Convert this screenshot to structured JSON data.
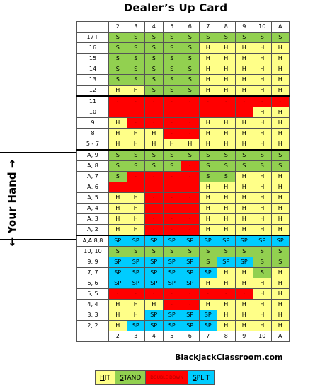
{
  "title": "Dealer’s Up Card",
  "side_label": "← Your Hand →",
  "brand": "BlackjackClassroom.com",
  "dealer_cards": [
    "2",
    "3",
    "4",
    "5",
    "6",
    "7",
    "8",
    "9",
    "10",
    "A"
  ],
  "codes": {
    "H": {
      "text": "H",
      "legend": "HIT",
      "first": "H",
      "rest": "IT",
      "color": "#ffff88"
    },
    "S": {
      "text": "S",
      "legend": "STAND",
      "first": "S",
      "rest": "TAND",
      "color": "#92d050"
    },
    "D": {
      "text": "-",
      "legend": "DOUBLE DOWN",
      "first": "D",
      "rest": "OUBLE DOWN",
      "color": "#ff0000"
    },
    "SP": {
      "text": "SP",
      "legend": "SPLIT",
      "first": "S",
      "rest": "PLIT",
      "color": "#00ccff"
    }
  },
  "rows": [
    {
      "hand": "17+",
      "cells": [
        "S",
        "S",
        "S",
        "S",
        "S",
        "S",
        "S",
        "S",
        "S",
        "S"
      ]
    },
    {
      "hand": "16",
      "cells": [
        "S",
        "S",
        "S",
        "S",
        "S",
        "H",
        "H",
        "H",
        "H",
        "H"
      ]
    },
    {
      "hand": "15",
      "cells": [
        "S",
        "S",
        "S",
        "S",
        "S",
        "H",
        "H",
        "H",
        "H",
        "H"
      ]
    },
    {
      "hand": "14",
      "cells": [
        "S",
        "S",
        "S",
        "S",
        "S",
        "H",
        "H",
        "H",
        "H",
        "H"
      ]
    },
    {
      "hand": "13",
      "cells": [
        "S",
        "S",
        "S",
        "S",
        "S",
        "H",
        "H",
        "H",
        "H",
        "H"
      ]
    },
    {
      "hand": "12",
      "cells": [
        "H",
        "H",
        "S",
        "S",
        "S",
        "H",
        "H",
        "H",
        "H",
        "H"
      ]
    },
    {
      "hand": "11",
      "cells": [
        "D",
        "D",
        "D",
        "D",
        "D",
        "D",
        "D",
        "D",
        "D",
        "D"
      ]
    },
    {
      "hand": "10",
      "cells": [
        "D",
        "D",
        "D",
        "D",
        "D",
        "D",
        "D",
        "D",
        "H",
        "H"
      ]
    },
    {
      "hand": "9",
      "cells": [
        "H",
        "D",
        "D",
        "D",
        "D",
        "H",
        "H",
        "H",
        "H",
        "H"
      ]
    },
    {
      "hand": "8",
      "cells": [
        "H",
        "H",
        "H",
        "D",
        "D",
        "H",
        "H",
        "H",
        "H",
        "H"
      ]
    },
    {
      "hand": "5 - 7",
      "cells": [
        "H",
        "H",
        "H",
        "H",
        "H",
        "H",
        "H",
        "H",
        "H",
        "H"
      ]
    },
    {
      "hand": "A, 9",
      "cells": [
        "S",
        "S",
        "S",
        "S",
        "S",
        "S",
        "S",
        "S",
        "S",
        "S"
      ]
    },
    {
      "hand": "A, 8",
      "cells": [
        "S",
        "S",
        "S",
        "S",
        "D",
        "S",
        "S",
        "S",
        "S",
        "S"
      ]
    },
    {
      "hand": "A, 7",
      "cells": [
        "S",
        "D",
        "D",
        "D",
        "D",
        "S",
        "S",
        "H",
        "H",
        "H"
      ]
    },
    {
      "hand": "A, 6",
      "cells": [
        "D",
        "D",
        "D",
        "D",
        "D",
        "H",
        "H",
        "H",
        "H",
        "H"
      ]
    },
    {
      "hand": "A, 5",
      "cells": [
        "H",
        "H",
        "D",
        "D",
        "D",
        "H",
        "H",
        "H",
        "H",
        "H"
      ]
    },
    {
      "hand": "A, 4",
      "cells": [
        "H",
        "H",
        "D",
        "D",
        "D",
        "H",
        "H",
        "H",
        "H",
        "H"
      ]
    },
    {
      "hand": "A, 3",
      "cells": [
        "H",
        "H",
        "D",
        "D",
        "D",
        "H",
        "H",
        "H",
        "H",
        "H"
      ]
    },
    {
      "hand": "A, 2",
      "cells": [
        "H",
        "H",
        "D",
        "D",
        "D",
        "H",
        "H",
        "H",
        "H",
        "H"
      ]
    },
    {
      "hand": "A,A 8,8",
      "cells": [
        "SP",
        "SP",
        "SP",
        "SP",
        "SP",
        "SP",
        "SP",
        "SP",
        "SP",
        "SP"
      ]
    },
    {
      "hand": "10, 10",
      "cells": [
        "S",
        "S",
        "S",
        "S",
        "S",
        "S",
        "S",
        "S",
        "S",
        "S"
      ]
    },
    {
      "hand": "9, 9",
      "cells": [
        "SP",
        "SP",
        "SP",
        "SP",
        "SP",
        "S",
        "SP",
        "SP",
        "S",
        "S"
      ]
    },
    {
      "hand": "7, 7",
      "cells": [
        "SP",
        "SP",
        "SP",
        "SP",
        "SP",
        "SP",
        "H",
        "H",
        "S",
        "H"
      ]
    },
    {
      "hand": "6, 6",
      "cells": [
        "SP",
        "SP",
        "SP",
        "SP",
        "SP",
        "H",
        "H",
        "H",
        "H",
        "H"
      ]
    },
    {
      "hand": "5, 5",
      "cells": [
        "D",
        "D",
        "D",
        "D",
        "D",
        "D",
        "D",
        "D",
        "H",
        "H"
      ]
    },
    {
      "hand": "4, 4",
      "cells": [
        "H",
        "H",
        "H",
        "D",
        "D",
        "H",
        "H",
        "H",
        "H",
        "H"
      ]
    },
    {
      "hand": "3, 3",
      "cells": [
        "H",
        "H",
        "SP",
        "SP",
        "SP",
        "SP",
        "H",
        "H",
        "H",
        "H"
      ]
    },
    {
      "hand": "2, 2",
      "cells": [
        "H",
        "SP",
        "SP",
        "SP",
        "SP",
        "SP",
        "H",
        "H",
        "H",
        "H"
      ]
    }
  ],
  "legend_order": [
    "H",
    "S",
    "D",
    "SP"
  ]
}
